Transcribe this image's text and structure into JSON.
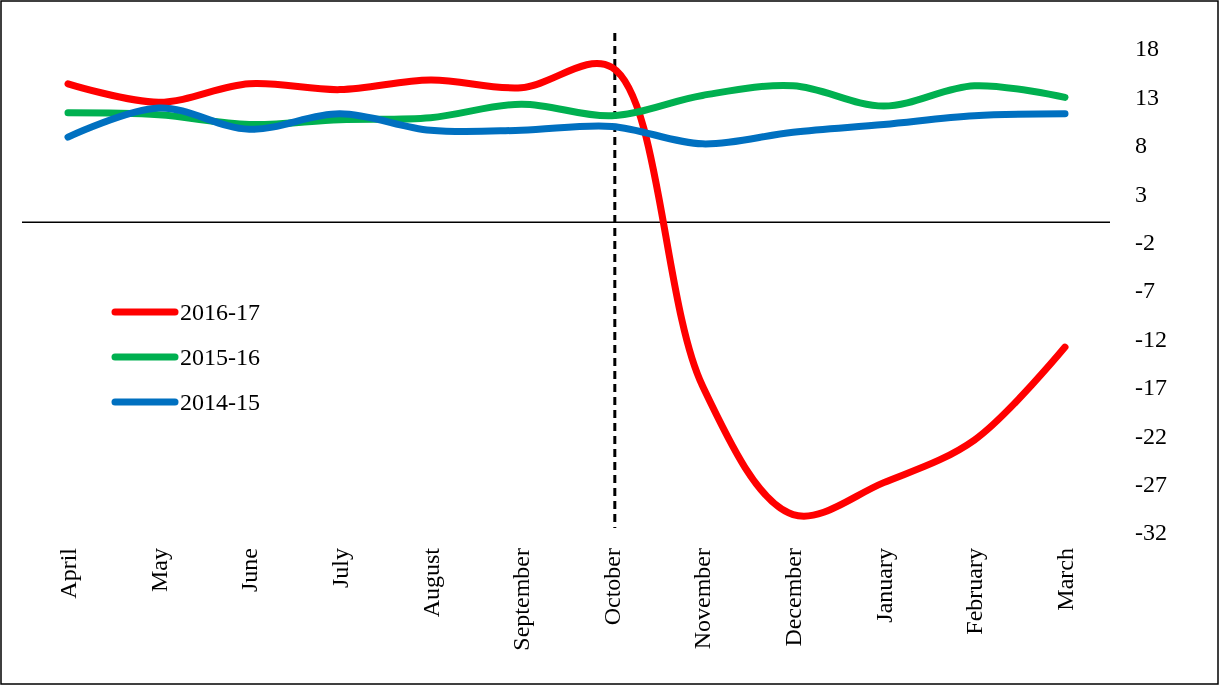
{
  "chart_data": {
    "type": "line",
    "categories": [
      "April",
      "May",
      "June",
      "July",
      "August",
      "September",
      "October",
      "November",
      "December",
      "January",
      "February",
      "March"
    ],
    "series": [
      {
        "name": "2016-17",
        "color": "#ff0000",
        "values": [
          14.3,
          12.4,
          14.3,
          13.7,
          14.7,
          13.9,
          16,
          -16.9,
          -30.2,
          -26.9,
          -22.5,
          -12.9
        ]
      },
      {
        "name": "2015-16",
        "color": "#00b050",
        "values": [
          11.3,
          11.1,
          10.1,
          10.6,
          10.8,
          12.2,
          11,
          13.1,
          14.1,
          12,
          14.1,
          12.9
        ]
      },
      {
        "name": "2014-15",
        "color": "#0070c0",
        "values": [
          8.8,
          11.8,
          9.6,
          11.2,
          9.5,
          9.5,
          9.9,
          8.1,
          9.3,
          10.1,
          11,
          11.2
        ]
      }
    ],
    "ylim": [
      -32,
      18
    ],
    "yticks": [
      18,
      13,
      8,
      3,
      -2,
      -7,
      -12,
      -17,
      -22,
      -27,
      -32
    ],
    "ref_lines": [
      {
        "axis": "y",
        "value": 0,
        "color": "#000000",
        "line_style": "solid"
      },
      {
        "axis": "x",
        "value": "October",
        "color": "#000000",
        "line_style": "dashed"
      }
    ],
    "legend": "left",
    "grid": false,
    "marker": "none",
    "line_style": "solid"
  }
}
